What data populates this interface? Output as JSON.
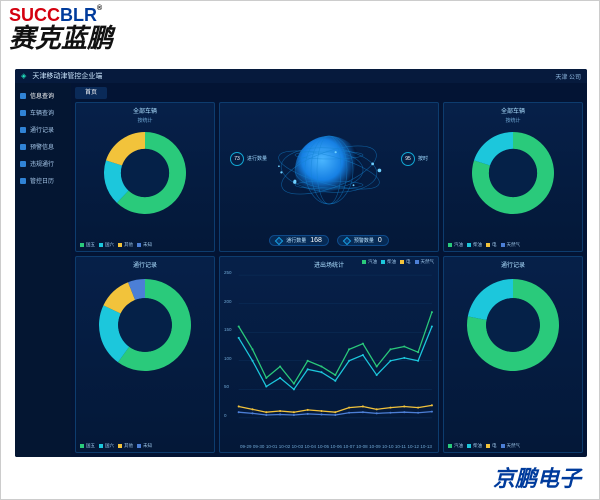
{
  "brand": {
    "en_part1": "SUCC",
    "en_part2": "BLR",
    "reg": "®",
    "cn": "赛克蓝鹏"
  },
  "footer": {
    "label": "京鹏电子"
  },
  "header": {
    "title": "天津移动津管控企业端",
    "right": "天津                 公司"
  },
  "sidebar": {
    "items": [
      {
        "label": "信息查询"
      },
      {
        "label": "车辆查询"
      },
      {
        "label": "通行记录"
      },
      {
        "label": "预警信息"
      },
      {
        "label": "违规通行"
      },
      {
        "label": "管控日历"
      }
    ]
  },
  "tab": {
    "label": "首页"
  },
  "panels": {
    "tl": {
      "title": "全部车辆",
      "sub": "按统计",
      "donut": {
        "segments": [
          {
            "color": "#2aca7b",
            "pct": 62
          },
          {
            "color": "#1cc7dc",
            "pct": 18
          },
          {
            "color": "#f2c33b",
            "pct": 20
          }
        ],
        "inner_bg": "#052148"
      },
      "legend": [
        {
          "color": "#2aca7b",
          "label": "国五"
        },
        {
          "color": "#1cc7dc",
          "label": "国六"
        },
        {
          "color": "#f2c33b",
          "label": "其他"
        },
        {
          "color": "#4c7fd6",
          "label": "未知"
        }
      ]
    },
    "tr": {
      "title": "全部车辆",
      "sub": "按统计",
      "donut": {
        "segments": [
          {
            "color": "#2aca7b",
            "pct": 80
          },
          {
            "color": "#1cc7dc",
            "pct": 20
          }
        ],
        "inner_bg": "#052148"
      },
      "legend": [
        {
          "color": "#2aca7b",
          "label": "汽油"
        },
        {
          "color": "#1cc7dc",
          "label": "柴油"
        },
        {
          "color": "#f2c33b",
          "label": "电"
        },
        {
          "color": "#4c7fd6",
          "label": "天然气"
        }
      ]
    },
    "bl": {
      "title": "通行记录",
      "donut": {
        "segments": [
          {
            "color": "#2aca7b",
            "pct": 60
          },
          {
            "color": "#1cc7dc",
            "pct": 22
          },
          {
            "color": "#f2c33b",
            "pct": 12
          },
          {
            "color": "#4c7fd6",
            "pct": 6
          }
        ],
        "inner_bg": "#052148"
      },
      "legend": [
        {
          "color": "#2aca7b",
          "label": "国五"
        },
        {
          "color": "#1cc7dc",
          "label": "国六"
        },
        {
          "color": "#f2c33b",
          "label": "其他"
        },
        {
          "color": "#4c7fd6",
          "label": "未知"
        }
      ]
    },
    "br": {
      "title": "通行记录",
      "donut": {
        "segments": [
          {
            "color": "#2aca7b",
            "pct": 78
          },
          {
            "color": "#1cc7dc",
            "pct": 22
          }
        ],
        "inner_bg": "#052148"
      },
      "legend": [
        {
          "color": "#2aca7b",
          "label": "汽油"
        },
        {
          "color": "#1cc7dc",
          "label": "柴油"
        },
        {
          "color": "#f2c33b",
          "label": "电"
        },
        {
          "color": "#4c7fd6",
          "label": "天然气"
        }
      ]
    }
  },
  "center": {
    "stat_left": {
      "value": "73",
      "label": "进行数量"
    },
    "stat_right": {
      "value": "95",
      "label": "按时"
    },
    "pill_left": {
      "label": "通行数量",
      "value": "168"
    },
    "pill_right": {
      "label": "预警数量",
      "value": "0"
    },
    "globe": {
      "color": "#1680e4",
      "hilite": "#4bb6ff"
    }
  },
  "linechart": {
    "title": "进出场统计",
    "ylim": [
      0,
      250
    ],
    "yticks": [
      0,
      50,
      100,
      150,
      200,
      250
    ],
    "x": [
      "09-29",
      "09-30",
      "10-01",
      "10-02",
      "10-03",
      "10-04",
      "10-05",
      "10-06",
      "10-07",
      "10-08",
      "10-09",
      "10-10",
      "10-11",
      "10-12",
      "10-13"
    ],
    "series": [
      {
        "name": "汽油",
        "color": "#2aca7b",
        "values": [
          160,
          120,
          70,
          90,
          60,
          100,
          90,
          75,
          120,
          130,
          90,
          120,
          125,
          115,
          185
        ]
      },
      {
        "name": "柴油",
        "color": "#1cc7dc",
        "values": [
          140,
          100,
          55,
          70,
          50,
          85,
          80,
          65,
          100,
          110,
          75,
          100,
          105,
          100,
          160
        ]
      },
      {
        "name": "电",
        "color": "#f2c33b",
        "values": [
          20,
          15,
          10,
          12,
          10,
          14,
          12,
          10,
          18,
          20,
          15,
          18,
          20,
          18,
          22
        ]
      },
      {
        "name": "天然气",
        "color": "#4c7fd6",
        "values": [
          10,
          8,
          5,
          6,
          5,
          7,
          6,
          5,
          9,
          10,
          8,
          9,
          10,
          9,
          11
        ]
      }
    ],
    "legend": [
      {
        "color": "#2aca7b",
        "label": "汽油"
      },
      {
        "color": "#1cc7dc",
        "label": "柴油"
      },
      {
        "color": "#f2c33b",
        "label": "电"
      },
      {
        "color": "#4c7fd6",
        "label": "天然气"
      }
    ],
    "grid_color": "#0d3560"
  }
}
